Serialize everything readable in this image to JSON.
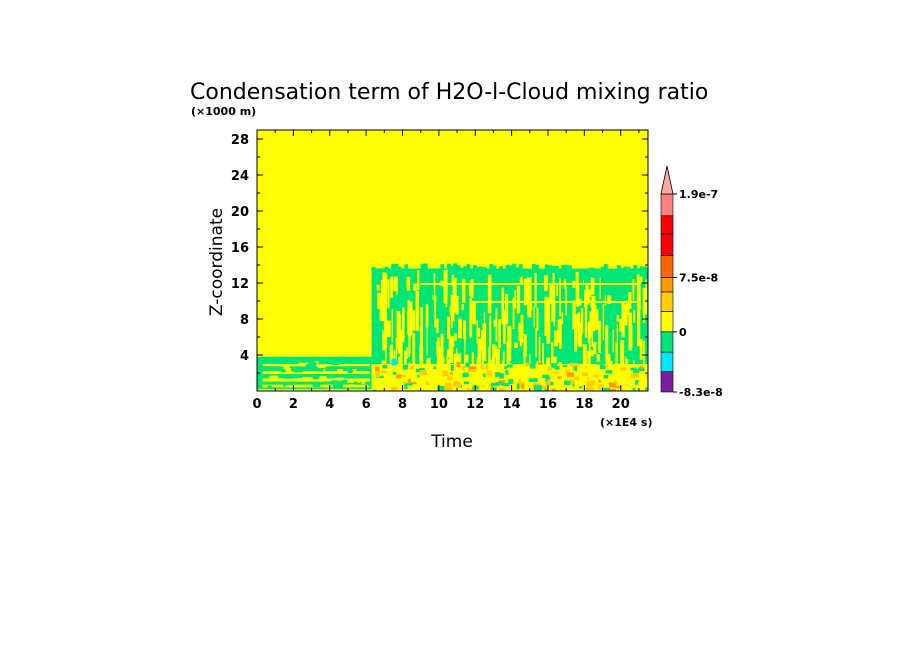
{
  "chart_data": {
    "type": "heatmap",
    "title": "Condensation term of H2O-l-Cloud mixing ratio",
    "y_unit": "(×1000 m)",
    "x_unit": "(×1E4 s)",
    "xlabel": "Time",
    "ylabel": "Z-coordinate",
    "xlim": [
      0,
      21.5
    ],
    "ylim": [
      0,
      29
    ],
    "x_ticks": [
      "0",
      "2",
      "4",
      "6",
      "8",
      "10",
      "12",
      "14",
      "16",
      "18",
      "20"
    ],
    "y_ticks": [
      "4",
      "8",
      "12",
      "16",
      "20",
      "24",
      "28"
    ],
    "background_color": "#ffff00",
    "colorbar": {
      "levels": [
        -8.3e-08,
        -5.5e-08,
        -2.8e-08,
        0,
        2.8e-08,
        5.5e-08,
        7.5e-08,
        1.05e-07,
        1.35e-07,
        1.6e-07,
        1.9e-07
      ],
      "colors": [
        "#7b1fa2",
        "#00e5ff",
        "#00e676",
        "#ffff00",
        "#ffcc00",
        "#ff9900",
        "#ff6600",
        "#ff0000",
        "#ff0000",
        "#ff8080"
      ],
      "extend_color": "#ffaaaa",
      "tick_labels": [
        {
          "label": "1.9e-7",
          "value": 1.9e-07
        },
        {
          "label": "7.5e-8",
          "value": 7.5e-08
        },
        {
          "label": "0",
          "value": 0
        },
        {
          "label": "-8.3e-8",
          "value": -8.3e-08
        }
      ]
    },
    "regions": [
      {
        "name": "upper-cloud-layer",
        "x": [
          6.3,
          21.5
        ],
        "y": [
          2.5,
          14.2
        ],
        "value": "green"
      },
      {
        "name": "early-low-layer",
        "x": [
          0,
          6.3
        ],
        "y": [
          0.2,
          3.8
        ],
        "value": "green"
      },
      {
        "name": "low-positive-band",
        "x": [
          6.3,
          21.5
        ],
        "y": [
          0,
          3.0
        ],
        "value": "yellow-orange"
      }
    ]
  }
}
